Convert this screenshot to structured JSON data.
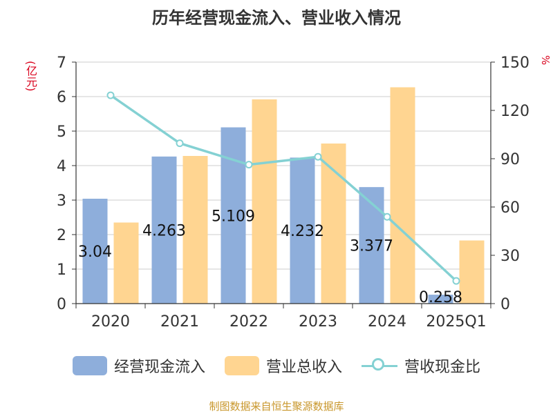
{
  "title": "历年经营现金流入、营业收入情况",
  "unit_left": "(亿元)",
  "unit_right": "%",
  "source": "制图数据来自恒生聚源数据库",
  "colors": {
    "series1": "#8eaedb",
    "series2": "#ffd591",
    "series3": "#84d1d3",
    "axis": "#333333",
    "grid": "#cccccc"
  },
  "chart_data": {
    "type": "bar",
    "title": "历年经营现金流入、营业收入情况",
    "categories": [
      "2020",
      "2021",
      "2022",
      "2023",
      "2024",
      "2025Q1"
    ],
    "y_left": {
      "label": "(亿元)",
      "min": 0,
      "max": 7,
      "ticks": [
        "0",
        "1",
        "2",
        "3",
        "4",
        "5",
        "6",
        "7"
      ]
    },
    "y_right": {
      "label": "%",
      "min": 0,
      "max": 150,
      "ticks": [
        "0",
        "30",
        "60",
        "90",
        "120",
        "150"
      ]
    },
    "grid": true,
    "legend_position": "bottom",
    "series": [
      {
        "name": "经营现金流入",
        "type": "bar",
        "axis": "left",
        "values": [
          3.04,
          4.263,
          5.109,
          4.232,
          3.377,
          0.258
        ],
        "labels": [
          "3.04",
          "4.263",
          "5.109",
          "4.232",
          "3.377",
          "0.258"
        ]
      },
      {
        "name": "营业总收入",
        "type": "bar",
        "axis": "left",
        "values": [
          2.35,
          4.28,
          5.92,
          4.64,
          6.27,
          1.83
        ]
      },
      {
        "name": "营收现金比",
        "type": "line",
        "axis": "right",
        "values": [
          129.4,
          99.6,
          86.3,
          91.2,
          53.9,
          14.1
        ]
      }
    ]
  }
}
